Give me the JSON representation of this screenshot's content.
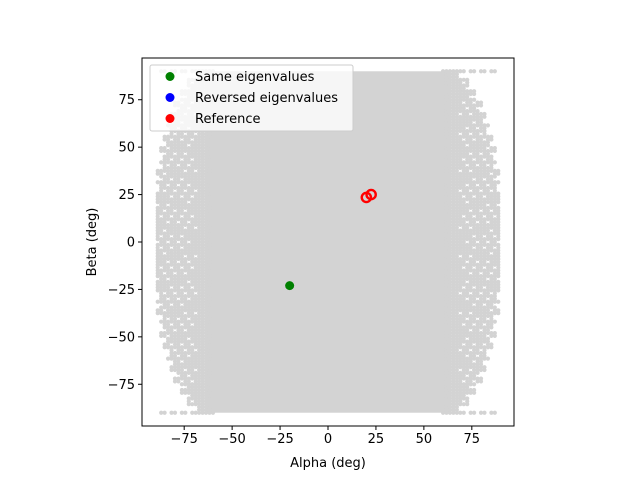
{
  "chart_data": {
    "type": "scatter",
    "title": "",
    "xlabel": "Alpha (deg)",
    "ylabel": "Beta (deg)",
    "xlim": [
      -97,
      97
    ],
    "ylim": [
      -97,
      97
    ],
    "xticks": [
      -75,
      -50,
      -25,
      0,
      25,
      50,
      75
    ],
    "yticks": [
      -75,
      -50,
      -25,
      0,
      25,
      50,
      75
    ],
    "xtick_labels": [
      "−75",
      "−50",
      "−25",
      "0",
      "25",
      "50",
      "75"
    ],
    "ytick_labels": [
      "−75",
      "−50",
      "−25",
      "0",
      "25",
      "50",
      "75"
    ],
    "grid": false,
    "legend_position": "upper-left",
    "background_cloud": {
      "color": "#d3d3d3",
      "alpha_range": [
        -90,
        90
      ],
      "beta_range": [
        -90,
        90
      ],
      "core_alpha_range": [
        -63,
        63
      ]
    },
    "series": [
      {
        "name": "Same eigenvalues",
        "color": "#008000",
        "marker": "filled-circle",
        "points": [
          [
            -20,
            -23
          ]
        ]
      },
      {
        "name": "Reversed eigenvalues",
        "color": "#0000ff",
        "marker": "filled-circle",
        "points": []
      },
      {
        "name": "Reference",
        "color": "#ff0000",
        "marker": "circle",
        "points": [
          [
            20,
            23.5
          ],
          [
            22.5,
            25
          ]
        ]
      }
    ]
  }
}
